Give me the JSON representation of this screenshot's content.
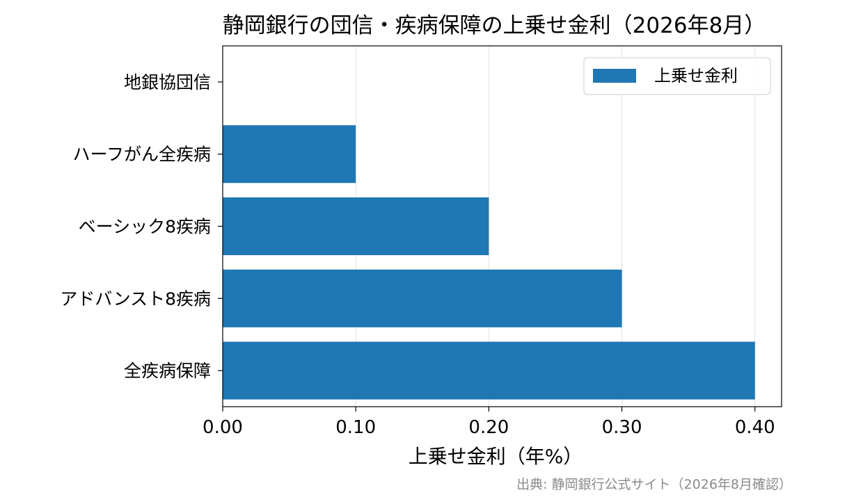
{
  "chart_data": {
    "type": "bar",
    "orientation": "horizontal",
    "title": "静岡銀行の団信・疾病保障の上乗せ金利（2026年8月）",
    "categories": [
      "地銀協団信",
      "ハーフがん全疾病",
      "ベーシック8疾病",
      "アドバンスト8疾病",
      "全疾病保障"
    ],
    "series": [
      {
        "name": "上乗せ金利",
        "values": [
          0.0,
          0.1,
          0.2,
          0.3,
          0.4
        ],
        "color": "#1f77b4"
      }
    ],
    "xlabel": "上乗せ金利（年%）",
    "ylabel": "",
    "xlim": [
      0,
      0.42
    ],
    "xticks": [
      "0.00",
      "0.10",
      "0.20",
      "0.30",
      "0.40"
    ],
    "xtick_values": [
      0,
      0.1,
      0.2,
      0.3,
      0.4
    ],
    "grid": "x",
    "legend_position": "top-right",
    "source": "出典: 静岡銀行公式サイト（2026年8月確認）"
  }
}
